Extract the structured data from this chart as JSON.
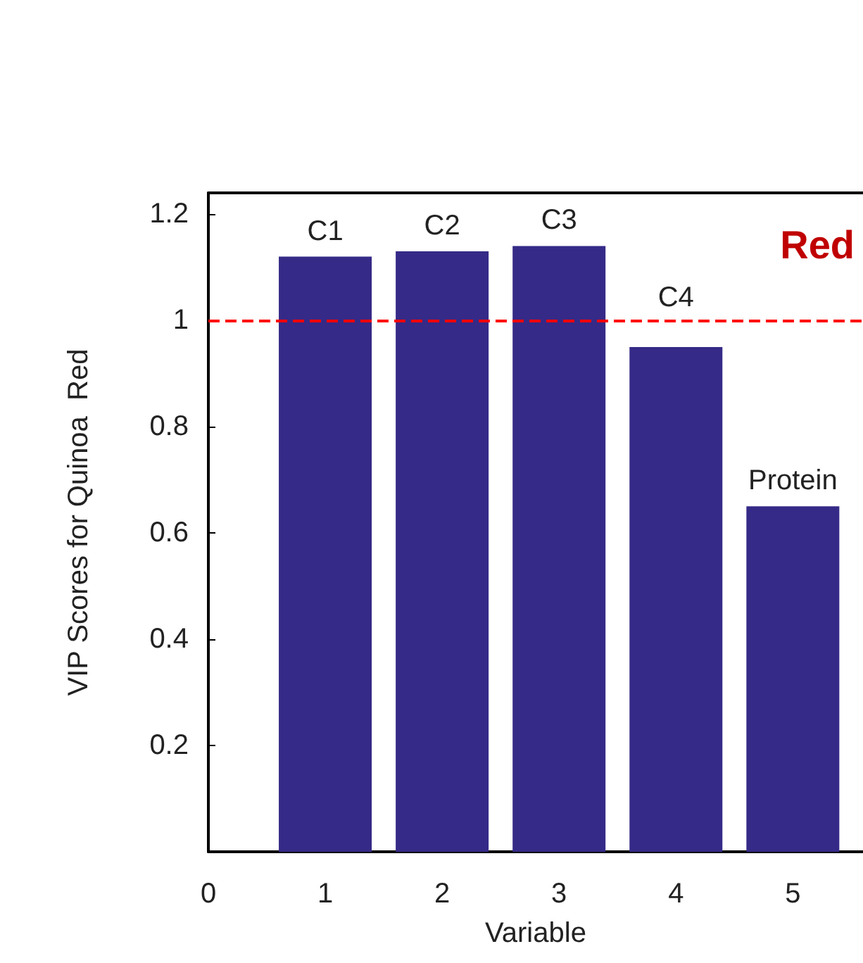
{
  "chart_data": {
    "type": "bar",
    "xlabel": "Variable",
    "ylabel": "VIP Scores for Quinoa  Red",
    "x": [
      1,
      2,
      3,
      4,
      5
    ],
    "values": [
      1.12,
      1.13,
      1.14,
      0.95,
      0.65
    ],
    "color": "#352a87",
    "xlim": [
      0,
      5.6
    ],
    "xticks": [
      0,
      1,
      2,
      3,
      4,
      5
    ],
    "ylim": [
      0,
      1.24
    ],
    "yticks": [
      0.2,
      0.4,
      0.6,
      0.8,
      1,
      1.2
    ],
    "ref_lines": [
      {
        "axis": "y",
        "value": 1,
        "color": "#ff0000",
        "line_style": "dashed"
      }
    ],
    "annotations": [
      {
        "text": "C1",
        "x": 1,
        "y": 1.12
      },
      {
        "text": "C2",
        "x": 2,
        "y": 1.13
      },
      {
        "text": "C3",
        "x": 3,
        "y": 1.14
      },
      {
        "text": "C4",
        "x": 4,
        "y": 0.95
      },
      {
        "text": "Protein",
        "x": 5,
        "y": 0.65
      },
      "Red"
    ]
  }
}
